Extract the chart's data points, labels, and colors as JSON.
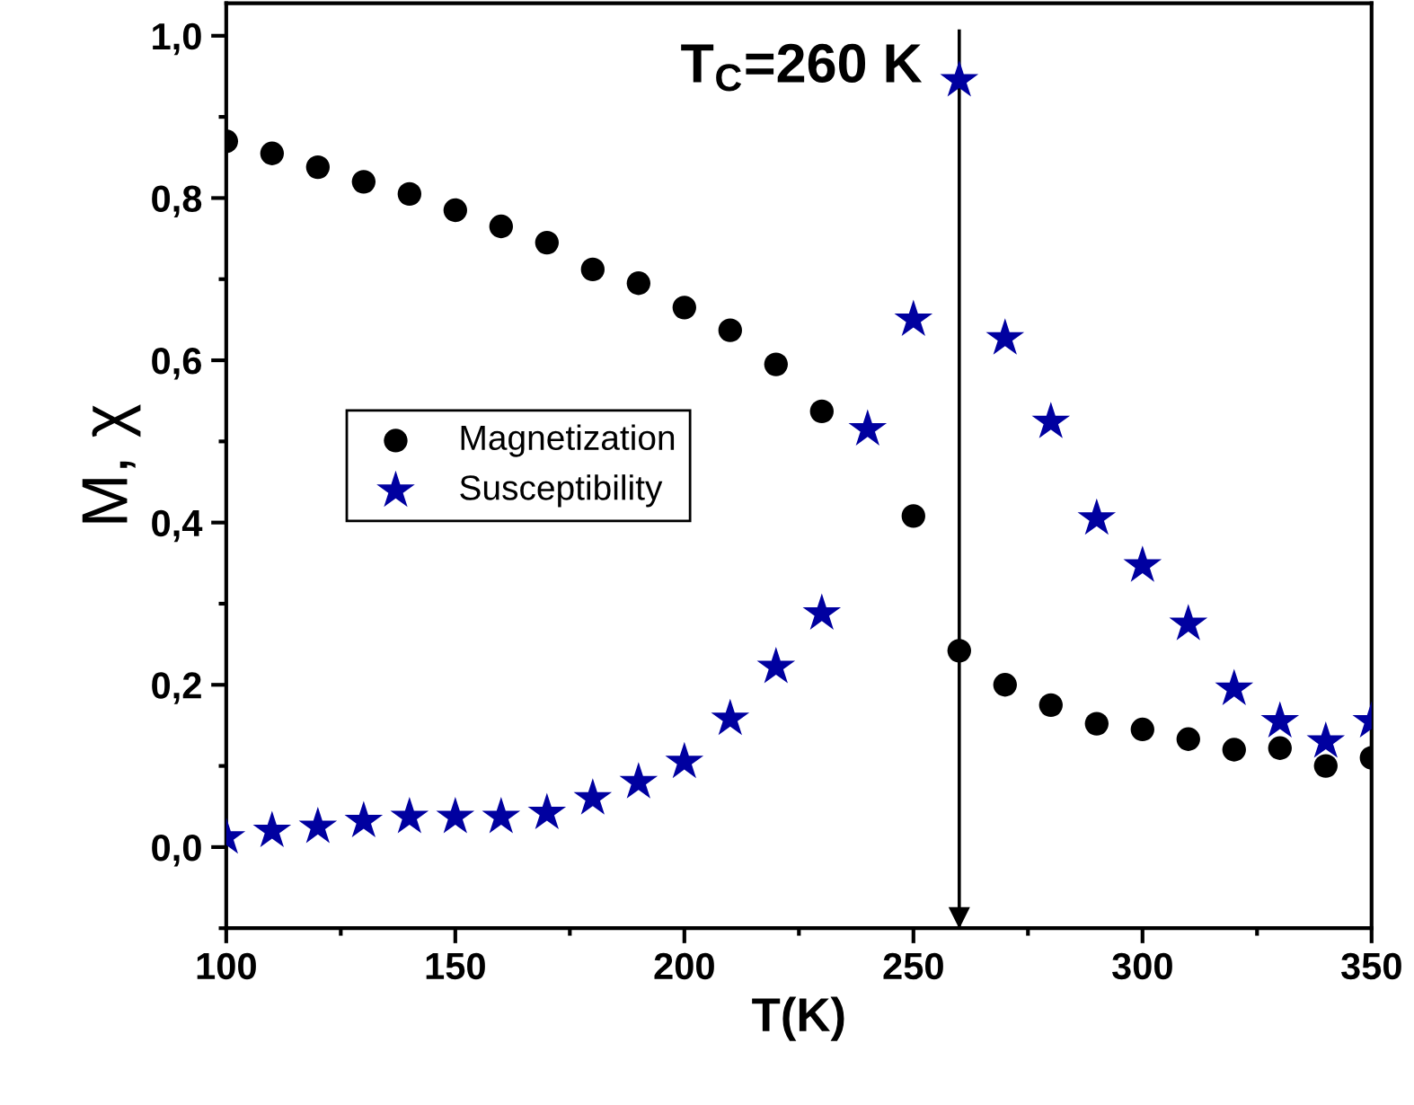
{
  "chart_data": {
    "type": "scatter",
    "xlabel": "T(K)",
    "ylabel": "M, χ",
    "x": [
      100,
      110,
      120,
      130,
      140,
      150,
      160,
      170,
      180,
      190,
      200,
      210,
      220,
      230,
      240,
      250,
      260,
      270,
      280,
      290,
      300,
      310,
      320,
      330,
      340,
      350
    ],
    "series": [
      {
        "name": "Magnetization",
        "color": "#000000",
        "marker": "circle",
        "values": [
          0.87,
          0.855,
          0.838,
          0.82,
          0.805,
          0.785,
          0.765,
          0.745,
          0.712,
          0.695,
          0.665,
          0.637,
          0.595,
          0.537,
          null,
          0.408,
          0.242,
          0.2,
          0.175,
          0.152,
          0.145,
          0.133,
          0.12,
          0.122,
          0.1,
          0.11
        ]
      },
      {
        "name": "Susceptibility",
        "color": "#0000a0",
        "marker": "star",
        "values": [
          0.012,
          0.02,
          0.025,
          0.032,
          0.037,
          0.037,
          0.037,
          0.042,
          0.06,
          0.08,
          0.105,
          0.158,
          0.222,
          0.288,
          0.515,
          0.65,
          0.945,
          0.627,
          0.524,
          0.405,
          0.347,
          0.275,
          0.195,
          0.155,
          0.13,
          0.155
        ]
      }
    ],
    "xlim": [
      100,
      350
    ],
    "xticks": [
      100,
      150,
      200,
      250,
      300,
      350
    ],
    "ylim": [
      -0.1,
      1.04
    ],
    "yticks": [
      {
        "value": 0,
        "label": "0,0"
      },
      {
        "value": 0.2,
        "label": "0,2"
      },
      {
        "value": 0.4,
        "label": "0,4"
      },
      {
        "value": 0.6,
        "label": "0,6"
      },
      {
        "value": 0.8,
        "label": "0,8"
      },
      {
        "value": 1.0,
        "label": "1,0"
      }
    ],
    "ref_lines": [
      {
        "axis": "x",
        "value": 260,
        "label": "T$_{C}$=260 K",
        "color": "#000000"
      }
    ],
    "legend": "left",
    "grid": false
  }
}
